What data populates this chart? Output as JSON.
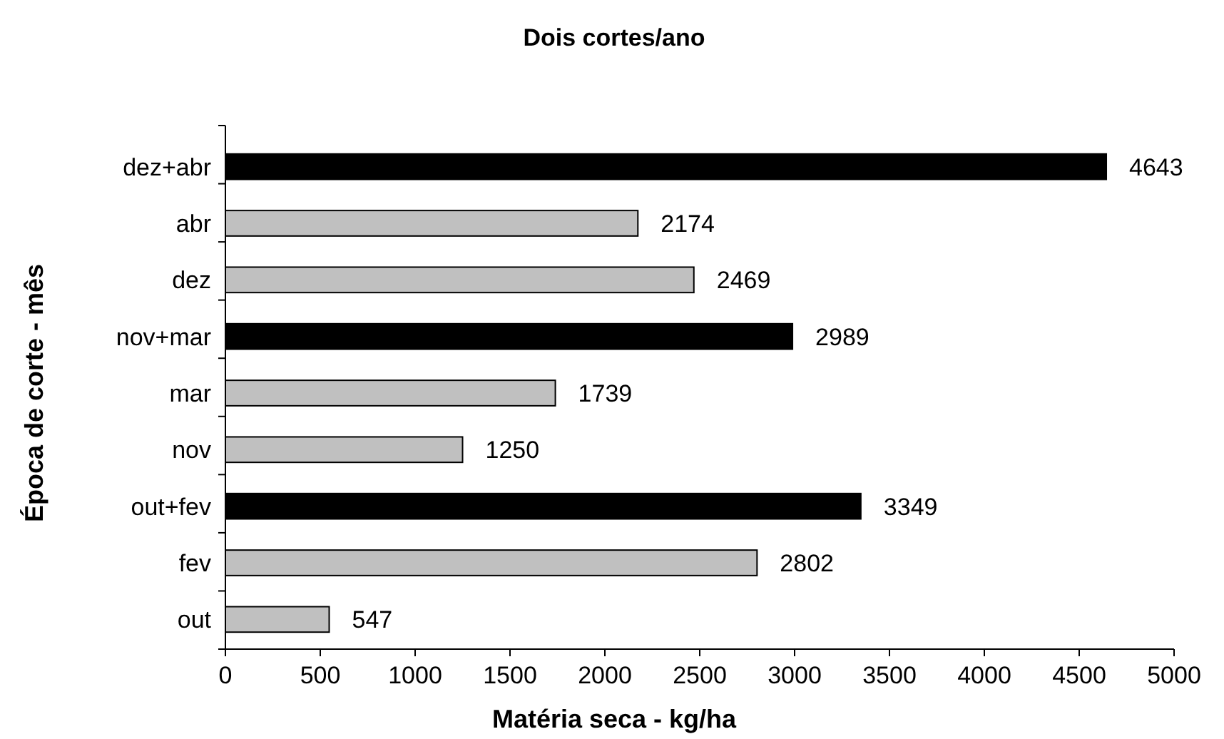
{
  "chart_data": {
    "type": "bar",
    "orientation": "horizontal",
    "title": "Dois cortes/ano",
    "xlabel": "Matéria seca - kg/ha",
    "ylabel": "Época de corte - mês",
    "categories": [
      "dez+abr",
      "abr",
      "dez",
      "nov+mar",
      "mar",
      "nov",
      "out+fev",
      "fev",
      "out"
    ],
    "values": [
      4643,
      2174,
      2469,
      2989,
      1739,
      1250,
      3349,
      2802,
      547
    ],
    "colors": [
      "#000000",
      "#c0c0c0",
      "#c0c0c0",
      "#000000",
      "#c0c0c0",
      "#c0c0c0",
      "#000000",
      "#c0c0c0",
      "#c0c0c0"
    ],
    "xlim": [
      0,
      5000
    ],
    "xticks": [
      0,
      500,
      1000,
      1500,
      2000,
      2500,
      3000,
      3500,
      4000,
      4500,
      5000
    ],
    "data_labels": true,
    "grid": false
  }
}
